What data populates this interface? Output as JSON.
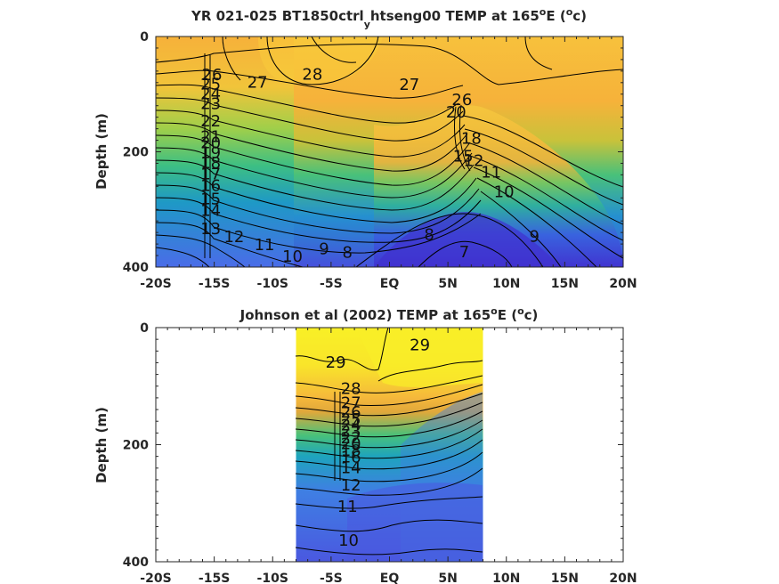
{
  "colors": {
    "warm": "#f9e52a",
    "orange": "#f6b13a",
    "green": "#3dbf83",
    "blue": "#4a6ce8",
    "deep": "#4030cf"
  },
  "chart_data": [
    {
      "type": "contour",
      "title_main": "YR 021-025 BT1850ctrl",
      "title_sub": "y",
      "title_rest": "htseng00 TEMP at 165",
      "title_deg": "o",
      "title_end": "E (",
      "title_unit": "c)",
      "ylabel": "Depth (m)",
      "xlim": [
        -20,
        20
      ],
      "ylim": [
        0,
        400
      ],
      "x_ticks": [
        -20,
        -15,
        -10,
        -5,
        0,
        5,
        10,
        15,
        20
      ],
      "x_tick_labels": [
        "-20S",
        "-15S",
        "-10S",
        "-5S",
        "EQ",
        "5N",
        "10N",
        "15N",
        "20N"
      ],
      "y_ticks": [
        0,
        200,
        400
      ],
      "y_tick_labels": [
        "0",
        "200",
        "400"
      ],
      "contour_labels": [
        {
          "text": "26",
          "lat": -15.2,
          "depth": 65
        },
        {
          "text": "27",
          "lat": -11.3,
          "depth": 78
        },
        {
          "text": "28",
          "lat": -6.6,
          "depth": 64
        },
        {
          "text": "27",
          "lat": 1.7,
          "depth": 82
        },
        {
          "text": "26",
          "lat": 6.2,
          "depth": 108
        },
        {
          "text": "25",
          "lat": -15.3,
          "depth": 81
        },
        {
          "text": "24",
          "lat": -15.3,
          "depth": 98
        },
        {
          "text": "23",
          "lat": -15.3,
          "depth": 115
        },
        {
          "text": "22",
          "lat": -15.3,
          "depth": 145
        },
        {
          "text": "21",
          "lat": -15.3,
          "depth": 172
        },
        {
          "text": "20",
          "lat": -15.3,
          "depth": 183
        },
        {
          "text": "19",
          "lat": -15.3,
          "depth": 200
        },
        {
          "text": "18",
          "lat": -15.3,
          "depth": 218
        },
        {
          "text": "17",
          "lat": -15.3,
          "depth": 237
        },
        {
          "text": "16",
          "lat": -15.3,
          "depth": 257
        },
        {
          "text": "15",
          "lat": -15.3,
          "depth": 280
        },
        {
          "text": "14",
          "lat": -15.3,
          "depth": 300
        },
        {
          "text": "13",
          "lat": -15.3,
          "depth": 332
        },
        {
          "text": "12",
          "lat": -13.3,
          "depth": 346
        },
        {
          "text": "11",
          "lat": -10.7,
          "depth": 360
        },
        {
          "text": "10",
          "lat": -8.3,
          "depth": 380
        },
        {
          "text": "9",
          "lat": -5.6,
          "depth": 367
        },
        {
          "text": "8",
          "lat": -3.6,
          "depth": 373
        },
        {
          "text": "8",
          "lat": 3.4,
          "depth": 342
        },
        {
          "text": "7",
          "lat": 6.4,
          "depth": 372
        },
        {
          "text": "9",
          "lat": 12.4,
          "depth": 345
        },
        {
          "text": "10",
          "lat": 9.8,
          "depth": 268
        },
        {
          "text": "11",
          "lat": 8.7,
          "depth": 234
        },
        {
          "text": "12",
          "lat": 7.2,
          "depth": 214
        },
        {
          "text": "15",
          "lat": 6.3,
          "depth": 206
        },
        {
          "text": "18",
          "lat": 7.0,
          "depth": 175
        },
        {
          "text": "20",
          "lat": 5.7,
          "depth": 130
        }
      ]
    },
    {
      "type": "contour",
      "title_main": "Johnson et al (2002) TEMP at 165",
      "title_deg": "o",
      "title_end": "E (",
      "title_unit": "c)",
      "ylabel": "Depth (m)",
      "xlim": [
        -20,
        20
      ],
      "ylim": [
        0,
        400
      ],
      "data_lat_range": [
        -8,
        8
      ],
      "x_ticks": [
        -20,
        -15,
        -10,
        -5,
        0,
        5,
        10,
        15,
        20
      ],
      "x_tick_labels": [
        "-20S",
        "-15S",
        "-10S",
        "-5S",
        "EQ",
        "5N",
        "10N",
        "15N",
        "20N"
      ],
      "y_ticks": [
        0,
        200,
        400
      ],
      "y_tick_labels": [
        "0",
        "200",
        "400"
      ],
      "contour_labels": [
        {
          "text": "29",
          "lat": -4.6,
          "depth": 58
        },
        {
          "text": "29",
          "lat": 2.6,
          "depth": 28
        },
        {
          "text": "28",
          "lat": -3.3,
          "depth": 103
        },
        {
          "text": "27",
          "lat": -3.3,
          "depth": 127
        },
        {
          "text": "26",
          "lat": -3.3,
          "depth": 143
        },
        {
          "text": "25",
          "lat": -3.3,
          "depth": 155
        },
        {
          "text": "24",
          "lat": -3.3,
          "depth": 165
        },
        {
          "text": "23",
          "lat": -3.3,
          "depth": 176
        },
        {
          "text": "22",
          "lat": -3.3,
          "depth": 187
        },
        {
          "text": "20",
          "lat": -3.3,
          "depth": 197
        },
        {
          "text": "18",
          "lat": -3.3,
          "depth": 208
        },
        {
          "text": "16",
          "lat": -3.3,
          "depth": 220
        },
        {
          "text": "14",
          "lat": -3.3,
          "depth": 238
        },
        {
          "text": "12",
          "lat": -3.3,
          "depth": 268
        },
        {
          "text": "11",
          "lat": -3.6,
          "depth": 304
        },
        {
          "text": "10",
          "lat": -3.5,
          "depth": 362
        }
      ]
    }
  ]
}
